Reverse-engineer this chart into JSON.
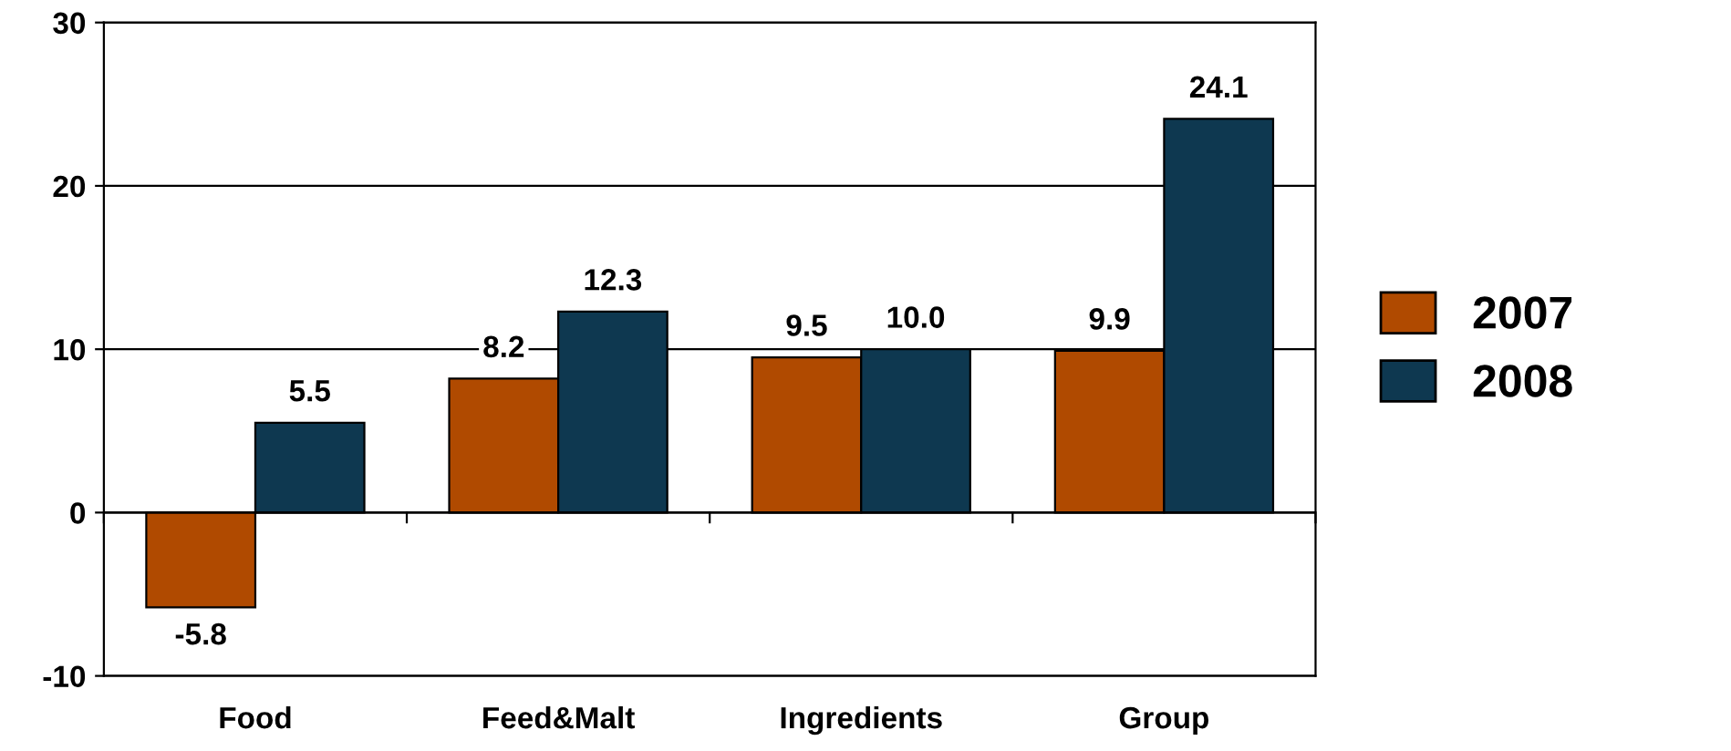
{
  "chart_data": {
    "type": "bar",
    "categories": [
      "Food",
      "Feed&Malt",
      "Ingredients",
      "Group"
    ],
    "series": [
      {
        "name": "2007",
        "color": "#b04a00",
        "values": [
          -5.8,
          8.2,
          9.5,
          9.9
        ],
        "value_labels": [
          "-5.8",
          "8.2",
          "9.5",
          "9.9"
        ]
      },
      {
        "name": "2008",
        "color": "#0e3850",
        "values": [
          5.5,
          12.3,
          10.0,
          24.1
        ],
        "value_labels": [
          "5.5",
          "12.3",
          "10.0",
          "24.1"
        ]
      }
    ],
    "ylim": [
      -10,
      30
    ],
    "yticks": [
      -10,
      0,
      10,
      20,
      30
    ],
    "grid": "y",
    "legend": "right"
  }
}
